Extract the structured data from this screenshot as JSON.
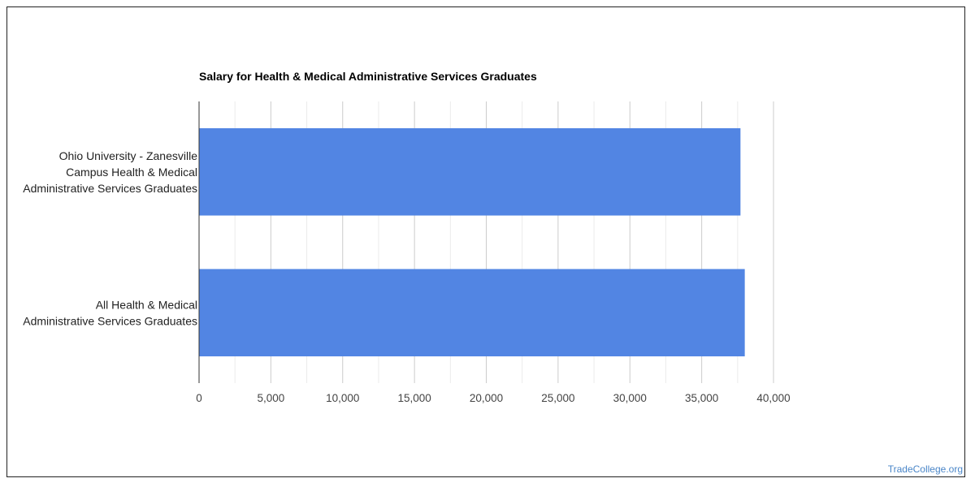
{
  "chart_data": {
    "type": "bar",
    "orientation": "horizontal",
    "title": "Salary for Health & Medical Administrative Services Graduates",
    "categories": [
      [
        "Ohio University - Zanesville",
        "Campus Health & Medical",
        "Administrative Services Graduates"
      ],
      [
        "All Health & Medical",
        "Administrative Services Graduates"
      ]
    ],
    "values": [
      37700,
      38000
    ],
    "xlim": [
      0,
      40000
    ],
    "xticks": [
      0,
      5000,
      10000,
      15000,
      20000,
      25000,
      30000,
      35000,
      40000
    ],
    "xtick_labels": [
      "0",
      "5,000",
      "10,000",
      "15,000",
      "20,000",
      "25,000",
      "30,000",
      "35,000",
      "40,000"
    ],
    "xlabel": "",
    "ylabel": "",
    "grid": true,
    "minor_grid": true,
    "legend": "none",
    "bar_color": "#5285e3"
  },
  "footer": {
    "watermark": "TradeCollege.org",
    "watermark_color": "#4a86c8"
  }
}
